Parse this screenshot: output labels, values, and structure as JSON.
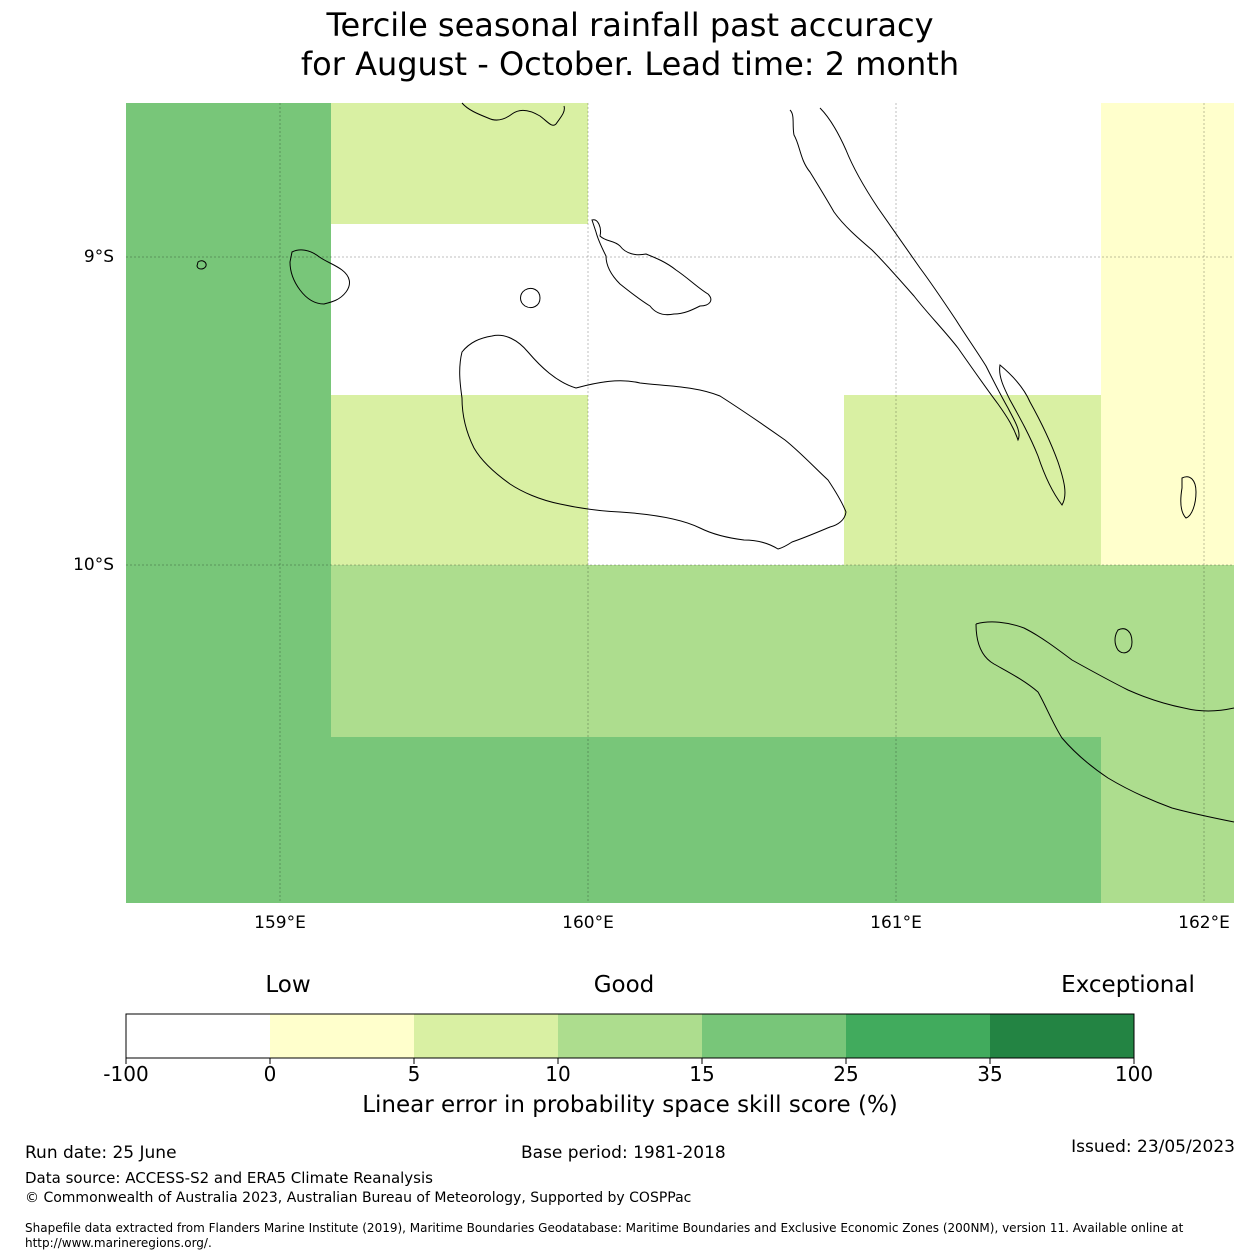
{
  "title": {
    "line1": "Tercile seasonal rainfall past accuracy",
    "line2": "for August - October. Lead time: 2 month"
  },
  "map": {
    "lon_labels": [
      "159°E",
      "160°E",
      "161°E",
      "162°E"
    ],
    "lat_labels": [
      "9°S",
      "10°S"
    ],
    "colors": {
      "white": "#ffffff",
      "bin_0_5": "#ffffcc",
      "bin_5_10": "#d9f0a3",
      "bin_10_15": "#addd8e",
      "bin_15_25": "#78c679",
      "bin_25_35": "#41ab5d",
      "bin_35_100": "#238443",
      "coastline": "#000000"
    }
  },
  "colorbar": {
    "category_labels": {
      "low": "Low",
      "good": "Good",
      "exceptional": "Exceptional"
    },
    "ticks": [
      "-100",
      "0",
      "5",
      "10",
      "15",
      "25",
      "35",
      "100"
    ],
    "colors": [
      "#ffffff",
      "#ffffcc",
      "#d9f0a3",
      "#addd8e",
      "#78c679",
      "#41ab5d",
      "#238443"
    ],
    "title": "Linear error in probability space skill score (%)"
  },
  "footer": {
    "run_date": "Run date: 25 June",
    "base_period": "Base period: 1981-2018",
    "issued": "Issued: 23/05/2023",
    "data_source": "Data source: ACCESS-S2 and ERA5 Climate Reanalysis",
    "copyright": "© Commonwealth of Australia 2023, Australian Bureau of Meteorology, Supported by COSPPac",
    "shapefile_line1": "Shapefile data extracted from Flanders Marine Institute (2019), Maritime Boundaries Geodatabase: Maritime Boundaries and Exclusive Economic Zones (200NM), version 11. Available online at",
    "shapefile_line2": "http://www.marineregions.org/."
  }
}
